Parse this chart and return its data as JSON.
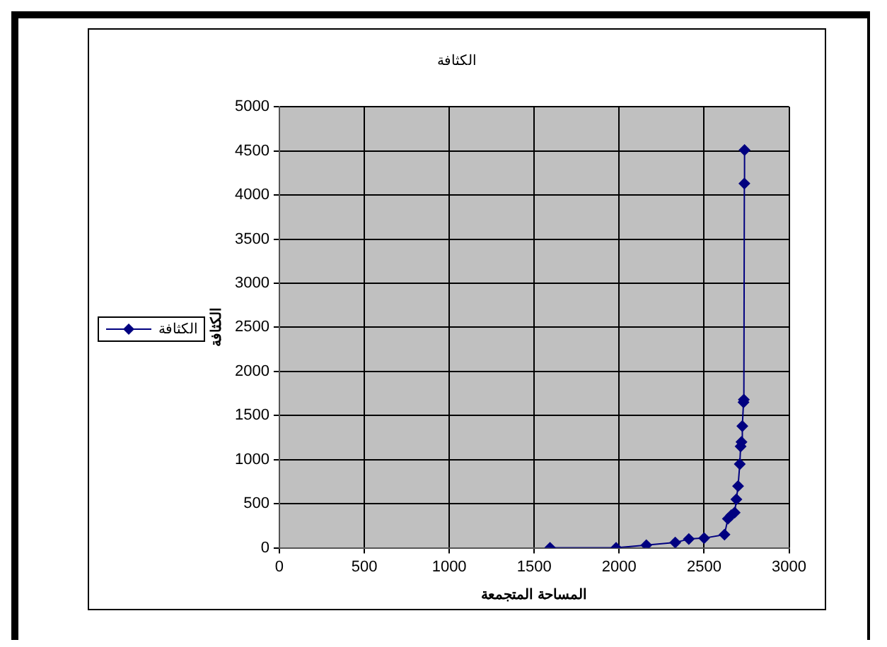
{
  "chart_data": {
    "type": "line",
    "title": "الكثافة",
    "xlabel": "المساحة المتجمعة",
    "ylabel": "الكثافة",
    "xlim": [
      0,
      3000
    ],
    "xticks": [
      0,
      500,
      1000,
      1500,
      2000,
      2500,
      3000
    ],
    "ylim": [
      0,
      5000
    ],
    "yticks": [
      0,
      500,
      1000,
      1500,
      2000,
      2500,
      3000,
      3500,
      4000,
      4500,
      5000
    ],
    "grid": true,
    "legend": "left",
    "marker": "diamond",
    "line_style": "solid",
    "series": [
      {
        "name": "الكثافة",
        "color": "#000080",
        "x": [
          1593,
          1982,
          2160,
          2330,
          2410,
          2500,
          2620,
          2640,
          2660,
          2680,
          2690,
          2700,
          2710,
          2715,
          2720,
          2725,
          2732,
          2734,
          2737,
          2738
        ],
        "values": [
          0,
          0,
          30,
          60,
          100,
          110,
          150,
          330,
          370,
          400,
          550,
          700,
          950,
          1150,
          1200,
          1380,
          1650,
          1680,
          4130,
          4510
        ]
      }
    ]
  }
}
